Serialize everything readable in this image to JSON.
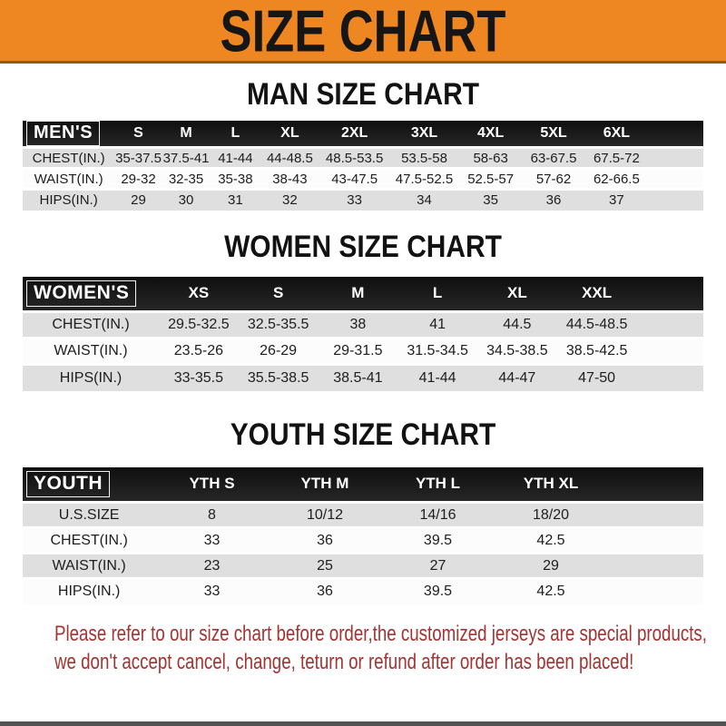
{
  "banner": {
    "title": "SIZE CHART"
  },
  "sections": [
    {
      "heading": "MAN SIZE CHART",
      "label": "MEN'S",
      "columns": [
        "S",
        "M",
        "L",
        "XL",
        "2XL",
        "3XL",
        "4XL",
        "5XL",
        "6XL"
      ],
      "rows": [
        {
          "label": "CHEST(IN.)",
          "values": [
            "35-37.5",
            "37.5-41",
            "41-44",
            "44-48.5",
            "48.5-53.5",
            "53.5-58",
            "58-63",
            "63-67.5",
            "67.5-72"
          ]
        },
        {
          "label": "WAIST(IN.)",
          "values": [
            "29-32",
            "32-35",
            "35-38",
            "38-43",
            "43-47.5",
            "47.5-52.5",
            "52.5-57",
            "57-62",
            "62-66.5"
          ]
        },
        {
          "label": "HIPS(IN.)",
          "values": [
            "29",
            "30",
            "31",
            "32",
            "33",
            "34",
            "35",
            "36",
            "37"
          ]
        }
      ]
    },
    {
      "heading": "WOMEN SIZE CHART",
      "label": "WOMEN'S",
      "columns": [
        "XS",
        "S",
        "M",
        "L",
        "XL",
        "XXL"
      ],
      "rows": [
        {
          "label": "CHEST(IN.)",
          "values": [
            "29.5-32.5",
            "32.5-35.5",
            "38",
            "41",
            "44.5",
            "44.5-48.5"
          ]
        },
        {
          "label": "WAIST(IN.)",
          "values": [
            "23.5-26",
            "26-29",
            "29-31.5",
            "31.5-34.5",
            "34.5-38.5",
            "38.5-42.5"
          ]
        },
        {
          "label": "HIPS(IN.)",
          "values": [
            "33-35.5",
            "35.5-38.5",
            "38.5-41",
            "41-44",
            "44-47",
            "47-50"
          ]
        }
      ]
    },
    {
      "heading": "YOUTH SIZE CHART",
      "label": "YOUTH",
      "columns": [
        "YTH S",
        "YTH M",
        "YTH L",
        "YTH XL"
      ],
      "rows": [
        {
          "label": "U.S.SIZE",
          "values": [
            "8",
            "10/12",
            "14/16",
            "18/20"
          ]
        },
        {
          "label": "CHEST(IN.)",
          "values": [
            "33",
            "36",
            "39.5",
            "42.5"
          ]
        },
        {
          "label": "WAIST(IN.)",
          "values": [
            "23",
            "25",
            "27",
            "29"
          ]
        },
        {
          "label": "HIPS(IN.)",
          "values": [
            "33",
            "36",
            "39.5",
            "42.5"
          ]
        }
      ]
    }
  ],
  "footer": {
    "line1": "Please refer to our size chart before order,the customized jerseys are special products,",
    "line2": "we don't accept cancel, change, teturn or refund after order has been placed!"
  },
  "colors": {
    "banner_orange": "#EE8621",
    "header_black": "#191919",
    "stripe_gray": "#DFDFDF",
    "footer_red": "#A33432"
  }
}
